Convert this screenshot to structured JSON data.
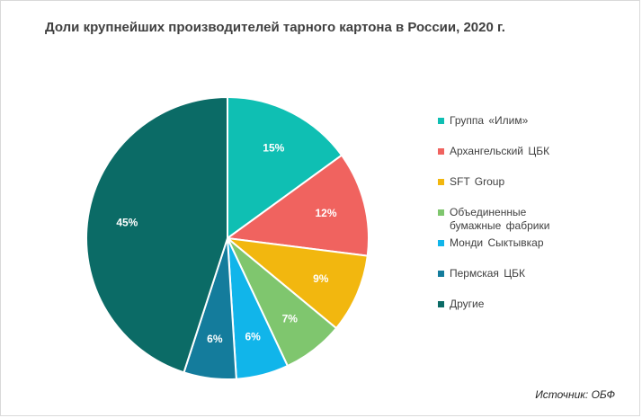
{
  "chart_data": {
    "type": "pie",
    "title": "Доли крупнейших производителей тарного картона в России, 2020 г.",
    "slices": [
      {
        "label": "Группа «Илим»",
        "value": 15,
        "data_label": "15%",
        "color": "#0fbfb3"
      },
      {
        "label": "Архангельский ЦБК",
        "value": 12,
        "data_label": "12%",
        "color": "#f0635f"
      },
      {
        "label": "SFT Group",
        "value": 9,
        "data_label": "9%",
        "color": "#f2b70f"
      },
      {
        "label": "Объединенные\nбумажные фабрики",
        "value": 7,
        "data_label": "7%",
        "color": "#7fc66e"
      },
      {
        "label": "Монди Сыктывкар",
        "value": 6,
        "data_label": "6%",
        "color": "#11b5ea"
      },
      {
        "label": "Пермская ЦБК",
        "value": 6,
        "data_label": "6%",
        "color": "#147c9c"
      },
      {
        "label": "Другие",
        "value": 45,
        "data_label": "45%",
        "color": "#0b6b66"
      }
    ],
    "start_angle_deg": 0,
    "direction": "clockwise",
    "legend_position": "right"
  },
  "source": "Источник: ОБФ"
}
